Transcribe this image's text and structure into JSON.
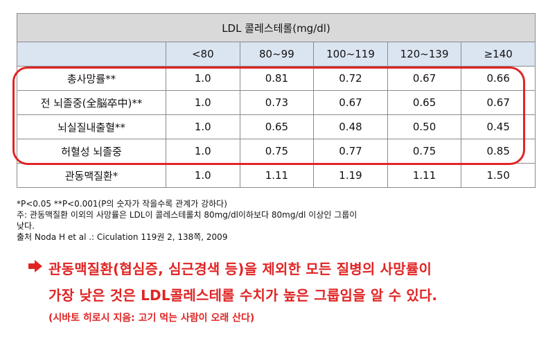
{
  "table": {
    "title": "LDL 콜레스테롤(mg/dl)",
    "columns": [
      "<80",
      "80~99",
      "100~119",
      "120~139",
      "≥140"
    ],
    "rows": [
      {
        "label": "총사망률**",
        "values": [
          "1.0",
          "0.81",
          "0.72",
          "0.67",
          "0.66"
        ]
      },
      {
        "label": "전 뇌졸중(全脳卒中)**",
        "values": [
          "1.0",
          "0.73",
          "0.67",
          "0.65",
          "0.67"
        ]
      },
      {
        "label": "뇌실질내출혈**",
        "values": [
          "1.0",
          "0.65",
          "0.48",
          "0.50",
          "0.45"
        ]
      },
      {
        "label": "허혈성 뇌졸중",
        "values": [
          "1.0",
          "0.75",
          "0.77",
          "0.75",
          "0.85"
        ]
      },
      {
        "label": "관동맥질환*",
        "values": [
          "1.0",
          "1.11",
          "1.19",
          "1.11",
          "1.50"
        ]
      }
    ]
  },
  "notes": {
    "line1": "*P<0.05  **P<0.001(P의 숫자가 작을수록 관계가 강하다)",
    "line2": "주: 관동맥질환 이외의 사망률은 LDL이 콜레스테롤치 80mg/dl이하보다 80mg/dl 이상인 그룹이",
    "line3": "낮다.",
    "line4": "출처 Noda H et al .: Ciculation 119권 2, 138쪽, 2009"
  },
  "conclusion": {
    "line1": "관동맥질환(협심증, 심근경색 등)을 제외한 모든 질병의 사망률이",
    "line2": "가장 낮은 것은 LDL콜레스테롤 수치가 높은 그룹임을 알 수 있다.",
    "line3": "(시바토 히로시 지음: 고기 먹는 사람이 오래 산다)"
  },
  "colors": {
    "highlight": "#e02424",
    "header_bg": "#d9d9d9",
    "subheader_bg": "#dbe4f1"
  }
}
